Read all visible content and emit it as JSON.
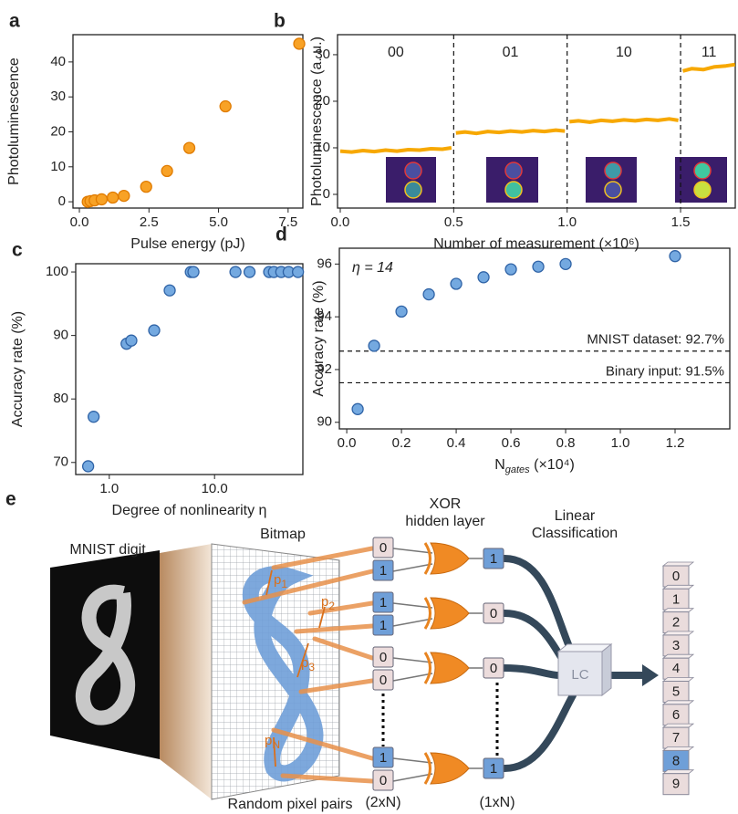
{
  "chart_data": [
    {
      "type": "scatter",
      "panel_label": "a",
      "xlabel": "Pulse energy (pJ)",
      "ylabel": "Photoluminescence",
      "x": [
        0.3,
        0.4,
        0.55,
        0.8,
        1.2,
        1.6,
        2.4,
        3.15,
        3.95,
        5.25,
        7.9
      ],
      "values": [
        0,
        0.2,
        0.4,
        0.7,
        1.2,
        1.7,
        4.3,
        8.8,
        15.4,
        27.3,
        45.2
      ],
      "color": "#f8a226",
      "edgecolor": "#e07b00",
      "xlim": [
        -0.23,
        8.03
      ],
      "ylim": [
        -1.8,
        47.8
      ],
      "xticks": [
        {
          "value": 0,
          "label": "0.0"
        },
        {
          "value": 2.5,
          "label": "2.5"
        },
        {
          "value": 5,
          "label": "5.0"
        },
        {
          "value": 7.5,
          "label": "7.5"
        }
      ],
      "yticks": [
        0,
        10,
        20,
        30,
        40
      ]
    },
    {
      "type": "line",
      "panel_label": "b",
      "xlabel": "Number of measurement (×10⁶)",
      "ylabel": "Photoluminescence (a. u.)",
      "series": [
        {
          "name": "00",
          "color": "#f7a800",
          "x": [
            0,
            0.05,
            0.1,
            0.15,
            0.2,
            0.25,
            0.3,
            0.35,
            0.4,
            0.45,
            0.49
          ],
          "values": [
            9.3,
            9.1,
            9.4,
            9.2,
            9.5,
            9.3,
            9.6,
            9.5,
            9.8,
            9.7,
            10.0
          ]
        },
        {
          "name": "01",
          "color": "#f7a800",
          "x": [
            0.51,
            0.55,
            0.6,
            0.65,
            0.7,
            0.75,
            0.8,
            0.85,
            0.9,
            0.95,
            0.99
          ],
          "values": [
            13.2,
            13.4,
            13.1,
            13.5,
            13.3,
            13.6,
            13.4,
            13.7,
            13.5,
            13.8,
            13.6
          ]
        },
        {
          "name": "10",
          "color": "#f7a800",
          "x": [
            1.01,
            1.05,
            1.1,
            1.15,
            1.2,
            1.25,
            1.3,
            1.35,
            1.4,
            1.45,
            1.49
          ],
          "values": [
            15.6,
            15.8,
            15.5,
            15.9,
            15.7,
            16.0,
            15.8,
            16.1,
            15.9,
            16.2,
            15.9
          ]
        },
        {
          "name": "11",
          "color": "#f7a800",
          "x": [
            1.51,
            1.55,
            1.6,
            1.65,
            1.7,
            1.74
          ],
          "values": [
            26.5,
            27.0,
            26.8,
            27.4,
            27.6,
            27.9
          ]
        }
      ],
      "vlines": [
        0.5,
        1.0,
        1.5
      ],
      "xlim": [
        -0.012,
        1.741
      ],
      "ylim": [
        -2.94,
        34.3
      ],
      "xticks": [
        {
          "value": 0,
          "label": "0.0"
        },
        {
          "value": 0.5,
          "label": "0.5"
        },
        {
          "value": 1,
          "label": "1.0"
        },
        {
          "value": 1.5,
          "label": "1.5"
        }
      ],
      "yticks": [
        0,
        10,
        20,
        30
      ]
    },
    {
      "type": "scatter",
      "panel_label": "c",
      "xlabel": "Degree of nonlinearity η",
      "ylabel": "Accuracy rate (%)",
      "xlog": true,
      "x": [
        0.63,
        0.71,
        1.46,
        1.62,
        2.67,
        3.75,
        5.95,
        6.3,
        15.8,
        21.5,
        33,
        36.6,
        43,
        50.6,
        62
      ],
      "values": [
        69.4,
        77.2,
        88.7,
        89.2,
        90.8,
        97.1,
        100,
        100,
        100,
        100,
        100,
        100,
        100,
        100,
        100
      ],
      "color": "#74a9e0",
      "edgecolor": "#2f63a6",
      "xlim": [
        0.48,
        69
      ],
      "ylim": [
        68.1,
        101.3
      ],
      "xticks": [
        {
          "value": 1,
          "label": "1.0"
        },
        {
          "value": 10,
          "label": "10.0"
        }
      ],
      "yticks": [
        70,
        80,
        90,
        100
      ]
    },
    {
      "type": "scatter",
      "panel_label": "d",
      "xlabel": {
        "main": "N",
        "sub": "gates",
        "unit": " (×10⁴)"
      },
      "ylabel": "Accuracy rate (%)",
      "annotation": "η = 14",
      "x": [
        0.04,
        0.1,
        0.2,
        0.3,
        0.4,
        0.5,
        0.6,
        0.7,
        0.8,
        1.2
      ],
      "values": [
        90.5,
        92.9,
        94.2,
        94.85,
        95.25,
        95.5,
        95.8,
        95.9,
        96.0,
        96.3
      ],
      "hlines": [
        {
          "value": 92.7,
          "label": "MNIST dataset: 92.7%"
        },
        {
          "value": 91.5,
          "label": "Binary input: 91.5%"
        }
      ],
      "color": "#74a9e0",
      "edgecolor": "#2f63a6",
      "xlim": [
        -0.027,
        1.4
      ],
      "ylim": [
        89.75,
        96.6
      ],
      "xticks": [
        {
          "value": 0,
          "label": "0.0"
        },
        {
          "value": 0.2,
          "label": "0.2"
        },
        {
          "value": 0.4,
          "label": "0.4"
        },
        {
          "value": 0.6,
          "label": "0.6"
        },
        {
          "value": 0.8,
          "label": "0.8"
        },
        {
          "value": 1,
          "label": "1.0"
        },
        {
          "value": 1.2,
          "label": "1.2"
        }
      ],
      "yticks": [
        90,
        92,
        94,
        96
      ]
    }
  ],
  "diagram": {
    "label": "e",
    "mnist_label": "MNIST digit",
    "bitmap_label": "Bitmap",
    "xor_title": [
      "XOR",
      "hidden layer"
    ],
    "lc_title": [
      "Linear",
      "Classification"
    ],
    "pairs": [
      [
        "0",
        "1"
      ],
      [
        "1",
        "1"
      ],
      [
        "0",
        "0"
      ],
      [
        "1",
        "0"
      ]
    ],
    "hidden": [
      "1",
      "0",
      "0",
      "1"
    ],
    "pair_labels": [
      {
        "base": "p",
        "sub": "1"
      },
      {
        "base": "p",
        "sub": "2"
      },
      {
        "base": "p",
        "sub": "3"
      },
      {
        "base": "p",
        "sub": "N"
      }
    ],
    "input_size": "(2xN)",
    "hidden_size": "(1xN)",
    "lc": "LC",
    "outputs": [
      "0",
      "1",
      "2",
      "3",
      "4",
      "5",
      "6",
      "7",
      "8",
      "9"
    ],
    "selected_output": 8,
    "caption": "Random pixel pairs"
  }
}
